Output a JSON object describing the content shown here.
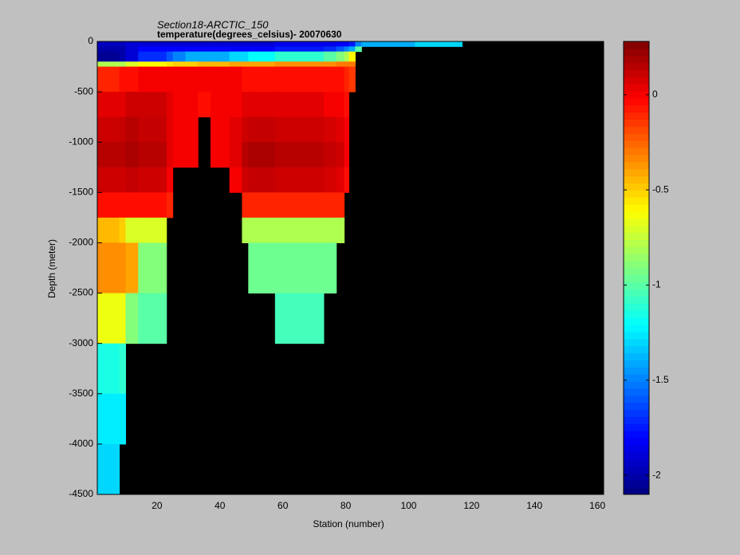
{
  "chart_data": {
    "type": "heatmap",
    "title": "Section18-ARCTIC_150",
    "subtitle": "temperature(degrees_celsius)- 20070630",
    "xlabel": "Station (number)",
    "ylabel": "Depth (meter)",
    "colormap": "jet",
    "xlim": [
      1,
      162
    ],
    "xticks": [
      20,
      40,
      60,
      80,
      100,
      120,
      140,
      160
    ],
    "ylim": [
      -4500,
      0
    ],
    "yticks": [
      0,
      -500,
      -1000,
      -1500,
      -2000,
      -2500,
      -3000,
      -3500,
      -4000,
      -4500
    ],
    "clim": [
      -2.1,
      0.28
    ],
    "cticks": [
      0,
      -0.5,
      -1,
      -1.5,
      -2
    ],
    "x_edges": [
      1,
      8,
      10,
      14,
      23,
      25,
      29,
      33,
      37,
      43,
      47,
      49,
      57.5,
      73,
      77,
      79.5,
      81,
      83,
      85,
      102,
      117,
      142,
      162
    ],
    "y_edges": [
      0,
      -50,
      -100,
      -200,
      -250,
      -500,
      -750,
      -1000,
      -1250,
      -1500,
      -1750,
      -2000,
      -2500,
      -3000,
      -3500,
      -4000,
      -4500
    ],
    "values": [
      [
        -1.95,
        -1.95,
        -1.9,
        -1.9,
        -1.9,
        -1.9,
        -1.9,
        -1.9,
        -1.9,
        -1.9,
        -1.9,
        -1.9,
        -1.85,
        -1.85,
        -1.8,
        -1.8,
        -1.75,
        -1.5,
        -1.4,
        -1.3,
        null,
        null
      ],
      [
        -2.0,
        -2.0,
        -1.9,
        -1.8,
        -1.8,
        -1.8,
        -1.8,
        -1.8,
        -1.8,
        -1.8,
        -1.8,
        -1.8,
        -1.75,
        -1.7,
        -1.6,
        -1.5,
        -1.4,
        -1.0,
        null,
        null,
        null,
        null
      ],
      [
        -2.05,
        -2.0,
        -1.9,
        -1.7,
        -1.6,
        -1.5,
        -1.4,
        -1.4,
        -1.4,
        -1.3,
        -1.3,
        -1.2,
        -1.1,
        -1.0,
        -0.9,
        -0.8,
        -0.6,
        null,
        null,
        null,
        null,
        null
      ],
      [
        -0.8,
        -0.8,
        -0.7,
        -0.6,
        -0.55,
        -0.5,
        -0.5,
        -0.45,
        -0.45,
        -0.4,
        -0.4,
        -0.4,
        -0.35,
        -0.35,
        -0.3,
        -0.3,
        -0.3,
        null,
        null,
        null,
        null,
        null
      ],
      [
        -0.1,
        -0.05,
        -0.05,
        0.0,
        0.0,
        0.0,
        0.0,
        0.0,
        0.0,
        0.0,
        -0.05,
        -0.05,
        -0.05,
        -0.05,
        -0.05,
        -0.1,
        -0.15,
        null,
        null,
        null,
        null,
        null
      ],
      [
        0.05,
        0.05,
        0.1,
        0.1,
        0.05,
        0.0,
        0.0,
        -0.05,
        0.0,
        0.0,
        0.05,
        0.05,
        0.05,
        0.0,
        0.0,
        -0.05,
        null,
        null,
        null,
        null,
        null,
        null
      ],
      [
        0.1,
        0.12,
        0.15,
        0.12,
        0.05,
        0.0,
        0.0,
        null,
        0.0,
        0.05,
        0.1,
        0.12,
        0.1,
        0.08,
        0.05,
        0.0,
        null,
        null,
        null,
        null,
        null,
        null
      ],
      [
        0.15,
        0.15,
        0.18,
        0.15,
        0.05,
        0.0,
        0.0,
        null,
        0.0,
        0.05,
        0.15,
        0.18,
        0.15,
        0.12,
        0.1,
        0.0,
        null,
        null,
        null,
        null,
        null,
        null
      ],
      [
        0.1,
        0.1,
        0.12,
        0.1,
        0.0,
        null,
        null,
        null,
        null,
        0.0,
        0.1,
        0.12,
        0.1,
        0.08,
        0.05,
        -0.05,
        null,
        null,
        null,
        null,
        null,
        null
      ],
      [
        -0.05,
        -0.05,
        -0.05,
        -0.05,
        -0.1,
        null,
        null,
        null,
        null,
        null,
        -0.1,
        -0.1,
        -0.1,
        -0.1,
        -0.1,
        null,
        null,
        null,
        null,
        null,
        null,
        null
      ],
      [
        -0.45,
        -0.5,
        -0.7,
        -0.7,
        null,
        null,
        null,
        null,
        null,
        null,
        -0.8,
        -0.8,
        -0.8,
        -0.8,
        -0.8,
        null,
        null,
        null,
        null,
        null,
        null,
        null
      ],
      [
        -0.35,
        -0.35,
        -0.4,
        -0.9,
        null,
        null,
        null,
        null,
        null,
        null,
        null,
        -0.95,
        -0.95,
        -0.95,
        null,
        null,
        null,
        null,
        null,
        null,
        null,
        null
      ],
      [
        -0.65,
        -0.65,
        -0.9,
        -1.0,
        null,
        null,
        null,
        null,
        null,
        null,
        null,
        null,
        -1.05,
        null,
        null,
        null,
        null,
        null,
        null,
        null,
        null,
        null
      ],
      [
        -1.15,
        -1.1,
        null,
        null,
        null,
        null,
        null,
        null,
        null,
        null,
        null,
        null,
        null,
        null,
        null,
        null,
        null,
        null,
        null,
        null,
        null,
        null
      ],
      [
        -1.25,
        -1.25,
        null,
        null,
        null,
        null,
        null,
        null,
        null,
        null,
        null,
        null,
        null,
        null,
        null,
        null,
        null,
        null,
        null,
        null,
        null,
        null
      ],
      [
        -1.3,
        null,
        null,
        null,
        null,
        null,
        null,
        null,
        null,
        null,
        null,
        null,
        null,
        null,
        null,
        null,
        null,
        null,
        null,
        null,
        null,
        null
      ]
    ]
  }
}
